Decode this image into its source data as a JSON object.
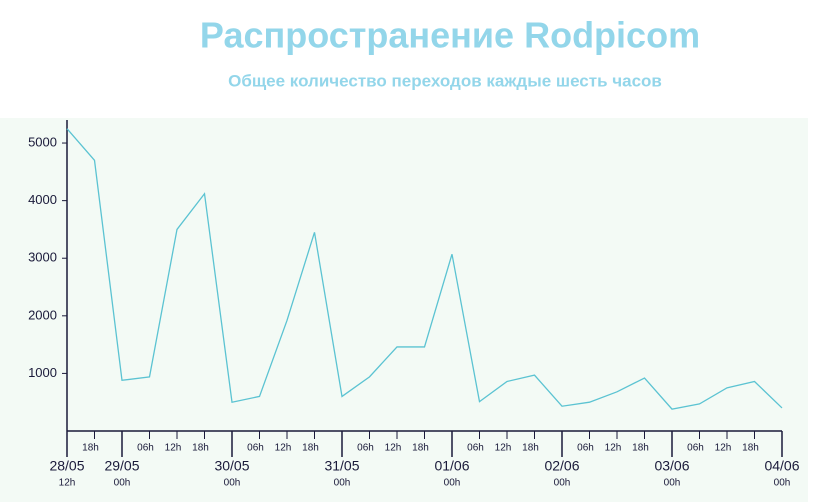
{
  "chart_data": {
    "type": "line",
    "title": "Распространение Rodpicom",
    "subtitle": "Общее количество переходов каждые шесть часов",
    "categories": [
      "12h",
      "18h",
      "00h",
      "06h",
      "12h",
      "18h",
      "00h",
      "06h",
      "12h",
      "18h",
      "00h",
      "06h",
      "12h",
      "18h",
      "00h",
      "06h",
      "12h",
      "18h",
      "00h",
      "06h",
      "12h",
      "18h",
      "00h",
      "06h",
      "12h",
      "18h",
      "00h"
    ],
    "days": [
      "28/05",
      null,
      "29/05",
      null,
      null,
      null,
      "30/05",
      null,
      null,
      null,
      "31/05",
      null,
      null,
      null,
      "01/06",
      null,
      null,
      null,
      "02/06",
      null,
      null,
      null,
      "03/06",
      null,
      null,
      null,
      "04/06"
    ],
    "series": [
      {
        "color": "#5bc3d2",
        "values": [
          5250,
          4700,
          880,
          940,
          3500,
          4120,
          500,
          600,
          1920,
          3450,
          600,
          940,
          1460,
          1460,
          3070,
          510,
          860,
          970,
          430,
          500,
          680,
          920,
          380,
          470,
          750,
          860,
          400
        ]
      }
    ],
    "ylim": [
      0,
      5400
    ],
    "yticks": [
      1000,
      2000,
      3000,
      4000,
      5000
    ]
  }
}
